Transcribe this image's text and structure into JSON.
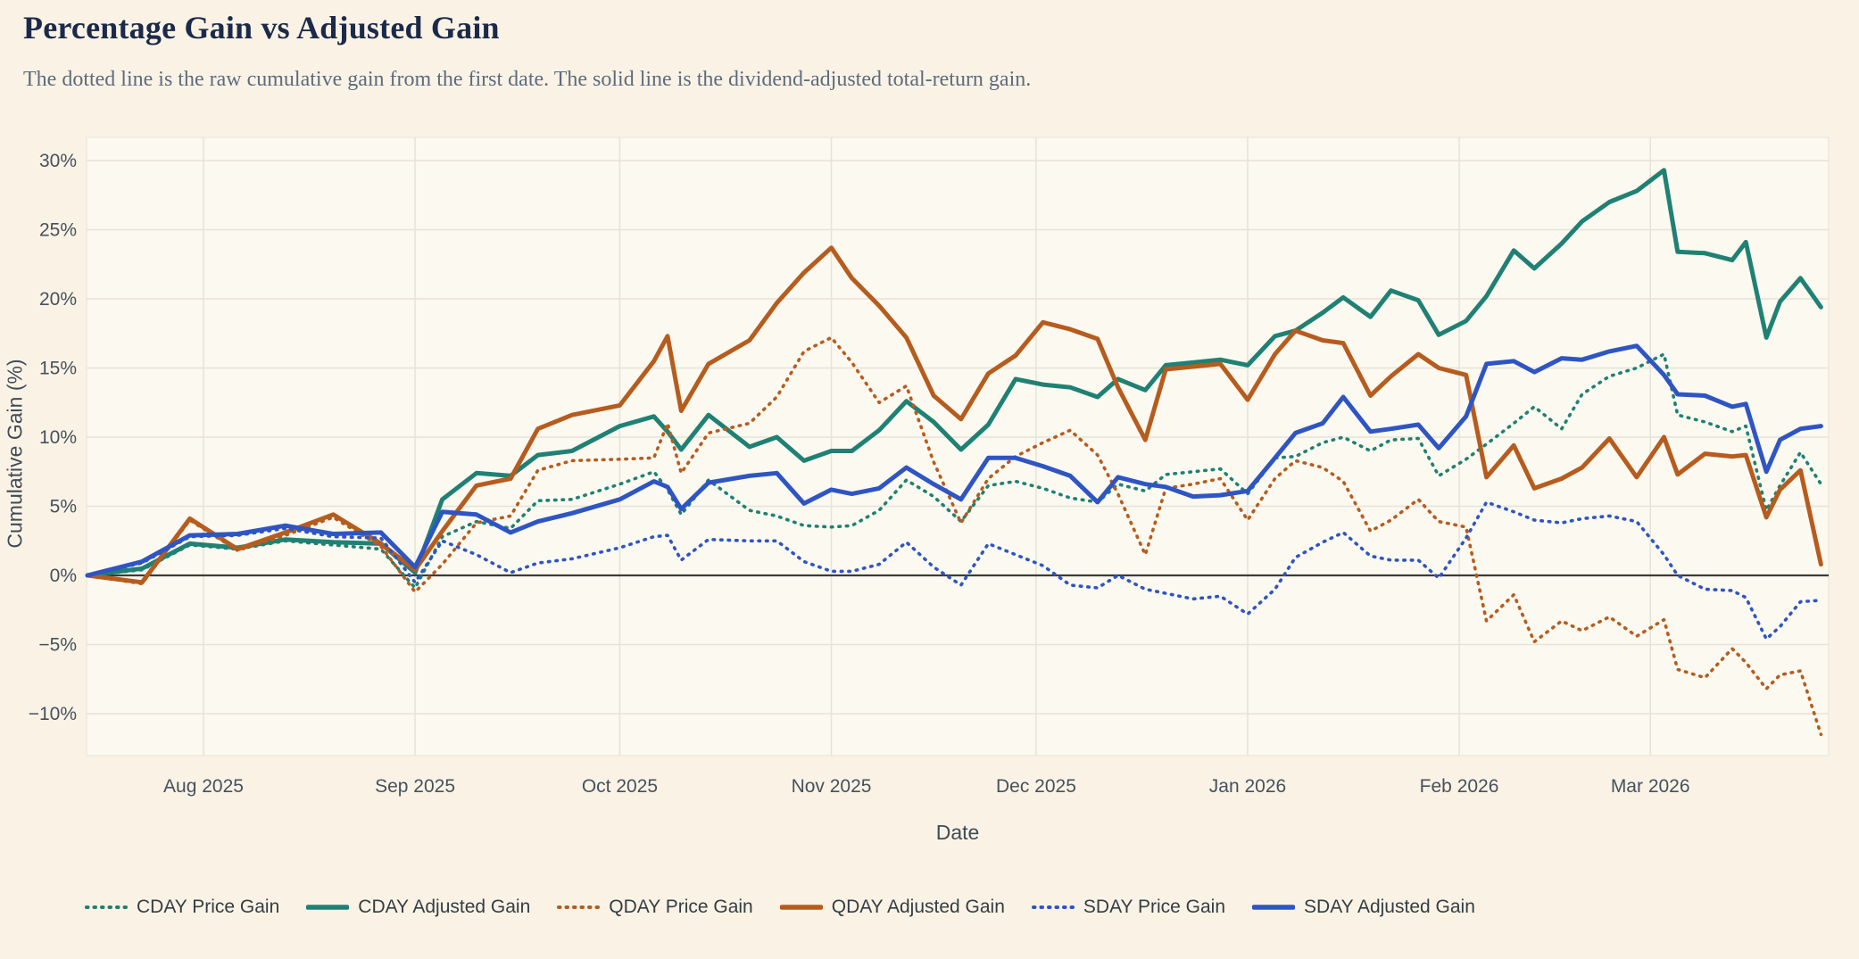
{
  "header": {
    "title": "Percentage Gain vs Adjusted Gain",
    "subtitle": "The dotted line is the raw cumulative gain from the first date. The solid line is the dividend-adjusted total-return gain."
  },
  "chart_data": {
    "type": "line",
    "title": "Percentage Gain vs Adjusted Gain",
    "xlabel": "Date",
    "ylabel": "Cumulative Gain (%)",
    "grid": true,
    "legend_position": "bottom",
    "ylim": [
      -13,
      31.5
    ],
    "x_domain_days": [
      0,
      255
    ],
    "y_ticks": {
      "values": [
        30,
        25,
        20,
        15,
        10,
        5,
        0,
        -5,
        -10
      ],
      "labels": [
        "30%",
        "25%",
        "20%",
        "15%",
        "10%",
        "5%",
        "0%",
        "−5%",
        "−10%"
      ]
    },
    "x_ticks": [
      {
        "day": 17,
        "label": "Aug 2025"
      },
      {
        "day": 48,
        "label": "Sep 2025"
      },
      {
        "day": 78,
        "label": "Oct 2025"
      },
      {
        "day": 109,
        "label": "Nov 2025"
      },
      {
        "day": 139,
        "label": "Dec 2025"
      },
      {
        "day": 170,
        "label": "Jan 2026"
      },
      {
        "day": 201,
        "label": "Feb 2026"
      },
      {
        "day": 229,
        "label": "Mar 2026"
      }
    ],
    "x_dates": [
      "Jul 15",
      "Jul 23",
      "Jul 30",
      "Aug 6",
      "Aug 13",
      "Aug 20",
      "Aug 27",
      "Sep 1",
      "Sep 5",
      "Sep 10",
      "Sep 15",
      "Sep 19",
      "Sep 24",
      "Oct 1",
      "Oct 6",
      "Oct 8",
      "Oct 10",
      "Oct 14",
      "Oct 20",
      "Oct 24",
      "Oct 28",
      "Nov 1",
      "Nov 4",
      "Nov 8",
      "Nov 12",
      "Nov 16",
      "Nov 20",
      "Nov 24",
      "Nov 28",
      "Dec 2",
      "Dec 6",
      "Dec 10",
      "Dec 13",
      "Dec 17",
      "Dec 20",
      "Dec 24",
      "Dec 28",
      "Jan 1",
      "Jan 5",
      "Jan 8",
      "Jan 12",
      "Jan 15",
      "Jan 19",
      "Jan 22",
      "Jan 26",
      "Jan 29",
      "Feb 2",
      "Feb 5",
      "Feb 9",
      "Feb 12",
      "Feb 16",
      "Feb 19",
      "Feb 23",
      "Feb 27",
      "Mar 3",
      "Mar 5",
      "Mar 9",
      "Mar 13",
      "Mar 15",
      "Mar 18",
      "Mar 20",
      "Mar 23",
      "Mar 26"
    ],
    "x_days": [
      0,
      8,
      15,
      22,
      29,
      36,
      43,
      48,
      52,
      57,
      62,
      66,
      71,
      78,
      83,
      85,
      87,
      91,
      97,
      101,
      105,
      109,
      112,
      116,
      120,
      124,
      128,
      132,
      136,
      140,
      144,
      148,
      151,
      155,
      158,
      162,
      166,
      170,
      174,
      177,
      181,
      184,
      188,
      191,
      195,
      198,
      202,
      205,
      209,
      212,
      216,
      219,
      223,
      227,
      231,
      233,
      237,
      241,
      243,
      246,
      248,
      251,
      254
    ],
    "series": [
      {
        "name": "CDAY Price Gain",
        "color": "#1f8173",
        "style": "dotted",
        "values": [
          0,
          0.4,
          2.2,
          1.9,
          2.5,
          2.2,
          1.9,
          -0.9,
          2.8,
          3.9,
          3.4,
          5.4,
          5.5,
          6.6,
          7.5,
          6.2,
          4.4,
          6.9,
          4.7,
          4.3,
          3.6,
          3.5,
          3.6,
          4.7,
          6.9,
          5.7,
          3.9,
          6.5,
          6.8,
          6.3,
          5.6,
          5.3,
          6.6,
          6.1,
          7.3,
          7.5,
          7.7,
          5.9,
          8.5,
          8.6,
          9.6,
          10.0,
          9.0,
          9.8,
          9.9,
          7.2,
          8.4,
          9.5,
          11.0,
          12.2,
          10.6,
          13.1,
          14.4,
          15.0,
          16.0,
          11.6,
          11.1,
          10.4,
          10.8,
          4.7,
          6.5,
          8.9,
          6.6
        ]
      },
      {
        "name": "CDAY Adjusted Gain",
        "color": "#1f8173",
        "style": "solid",
        "values": [
          0,
          0.5,
          2.3,
          2.0,
          2.6,
          2.4,
          2.3,
          0.2,
          5.5,
          7.4,
          7.2,
          8.7,
          9.0,
          10.8,
          11.5,
          10.4,
          9.1,
          11.6,
          9.3,
          10.0,
          8.3,
          9.0,
          9.0,
          10.5,
          12.6,
          11.1,
          9.1,
          10.9,
          14.2,
          13.8,
          13.6,
          12.9,
          14.2,
          13.4,
          15.2,
          15.4,
          15.6,
          15.2,
          17.3,
          17.7,
          19.0,
          20.1,
          18.7,
          20.6,
          19.9,
          17.4,
          18.4,
          20.2,
          23.5,
          22.2,
          24.0,
          25.6,
          27.0,
          27.8,
          29.3,
          23.4,
          23.3,
          22.8,
          24.1,
          17.2,
          19.8,
          21.5,
          19.4
        ]
      },
      {
        "name": "QDAY Price Gain",
        "color": "#b65c1e",
        "style": "dotted",
        "values": [
          0,
          -0.6,
          4.0,
          1.8,
          2.9,
          4.2,
          2.1,
          -1.2,
          0.8,
          3.8,
          4.3,
          7.6,
          8.3,
          8.4,
          8.5,
          11.0,
          7.4,
          10.3,
          11.0,
          12.9,
          16.2,
          17.2,
          15.4,
          12.5,
          13.7,
          8.2,
          3.8,
          7.0,
          8.6,
          9.6,
          10.5,
          8.7,
          5.9,
          1.5,
          6.3,
          6.6,
          7.0,
          4.0,
          7.0,
          8.3,
          7.8,
          6.8,
          3.2,
          4.0,
          5.5,
          3.9,
          3.5,
          -3.3,
          -1.4,
          -4.8,
          -3.3,
          -4.0,
          -3.0,
          -4.4,
          -3.2,
          -6.8,
          -7.4,
          -5.3,
          -6.3,
          -8.2,
          -7.2,
          -6.9,
          -11.5
        ]
      },
      {
        "name": "QDAY Adjusted Gain",
        "color": "#b65c1e",
        "style": "solid",
        "values": [
          0,
          -0.5,
          4.1,
          1.9,
          3.1,
          4.4,
          2.3,
          0.4,
          3.2,
          6.5,
          7.0,
          10.6,
          11.6,
          12.3,
          15.5,
          17.3,
          11.9,
          15.3,
          17.0,
          19.7,
          21.9,
          23.7,
          21.5,
          19.5,
          17.2,
          13.0,
          11.3,
          14.6,
          15.9,
          18.3,
          17.8,
          17.1,
          13.6,
          9.8,
          14.9,
          15.1,
          15.3,
          12.7,
          16.0,
          17.7,
          17.0,
          16.8,
          13.0,
          14.4,
          16.0,
          15.0,
          14.5,
          7.1,
          9.4,
          6.3,
          7.0,
          7.8,
          9.9,
          7.1,
          10.0,
          7.3,
          8.8,
          8.6,
          8.7,
          4.2,
          6.2,
          7.6,
          0.8
        ]
      },
      {
        "name": "SDAY Price Gain",
        "color": "#2e55c3",
        "style": "dotted",
        "values": [
          0,
          0.9,
          2.8,
          2.9,
          3.4,
          2.8,
          2.7,
          -0.5,
          2.5,
          1.5,
          0.2,
          0.9,
          1.2,
          2.0,
          2.8,
          2.9,
          1.1,
          2.6,
          2.5,
          2.5,
          1.0,
          0.3,
          0.3,
          0.8,
          2.4,
          0.6,
          -0.7,
          2.3,
          1.5,
          0.7,
          -0.7,
          -0.9,
          0.0,
          -1.0,
          -1.3,
          -1.7,
          -1.5,
          -2.8,
          -1.0,
          1.3,
          2.4,
          3.1,
          1.4,
          1.1,
          1.1,
          -0.2,
          2.7,
          5.3,
          4.6,
          4.0,
          3.8,
          4.1,
          4.3,
          3.9,
          1.5,
          0.0,
          -1.0,
          -1.1,
          -1.6,
          -4.6,
          -3.7,
          -1.9,
          -1.8
        ]
      },
      {
        "name": "SDAY Adjusted Gain",
        "color": "#2e55c3",
        "style": "solid",
        "values": [
          0,
          1.0,
          2.9,
          3.0,
          3.6,
          3.0,
          3.1,
          0.6,
          4.6,
          4.4,
          3.1,
          3.9,
          4.5,
          5.5,
          6.8,
          6.4,
          4.8,
          6.7,
          7.2,
          7.4,
          5.2,
          6.2,
          5.9,
          6.3,
          7.8,
          6.6,
          5.5,
          8.5,
          8.5,
          7.9,
          7.2,
          5.3,
          7.1,
          6.6,
          6.4,
          5.7,
          5.8,
          6.1,
          8.5,
          10.3,
          11.0,
          12.9,
          10.4,
          10.6,
          10.9,
          9.2,
          11.5,
          15.3,
          15.5,
          14.7,
          15.7,
          15.6,
          16.2,
          16.6,
          14.5,
          13.1,
          13.0,
          12.2,
          12.4,
          7.5,
          9.8,
          10.6,
          10.8
        ]
      }
    ]
  },
  "style": {
    "page_bg": "#faf3e5",
    "plot_bg": "#fcf9f0",
    "grid_color": "#e6e3d8",
    "zero_line_color": "#3c3c3c",
    "tick_color": "#45515e",
    "title_color": "#1b2a4a",
    "subtitle_color": "#5d6b7e",
    "legend_text_color": "#333d44"
  }
}
